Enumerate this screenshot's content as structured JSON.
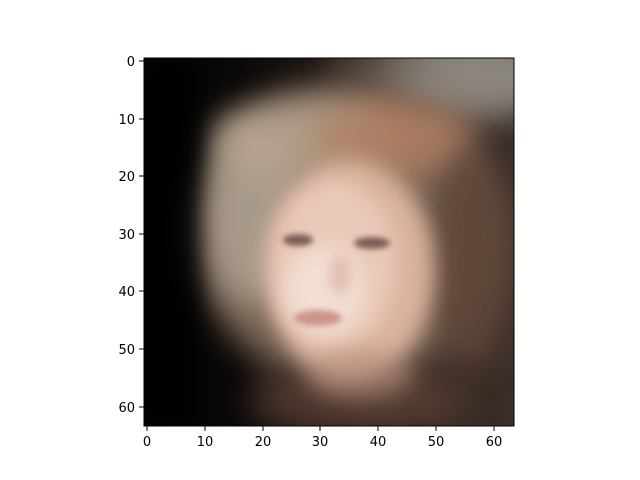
{
  "image": {
    "content": "blurry-face-portrait",
    "palette": {
      "background_dark": "#0b0908",
      "hair_light": "#a89a8a",
      "hair_brown": "#8a6a55",
      "skin": "#e4c2b0",
      "skin_highlight": "#f3ded3",
      "lips": "#c98d85",
      "eyes": "#6b4a44",
      "top_right_gray": "#9a958e"
    }
  },
  "axes": {
    "x_ticks": [
      "0",
      "10",
      "20",
      "30",
      "40",
      "50",
      "60"
    ],
    "y_ticks": [
      "0",
      "10",
      "20",
      "30",
      "40",
      "50",
      "60"
    ],
    "xlim": [
      -0.5,
      63.5
    ],
    "ylim": [
      63.5,
      -0.5
    ]
  }
}
